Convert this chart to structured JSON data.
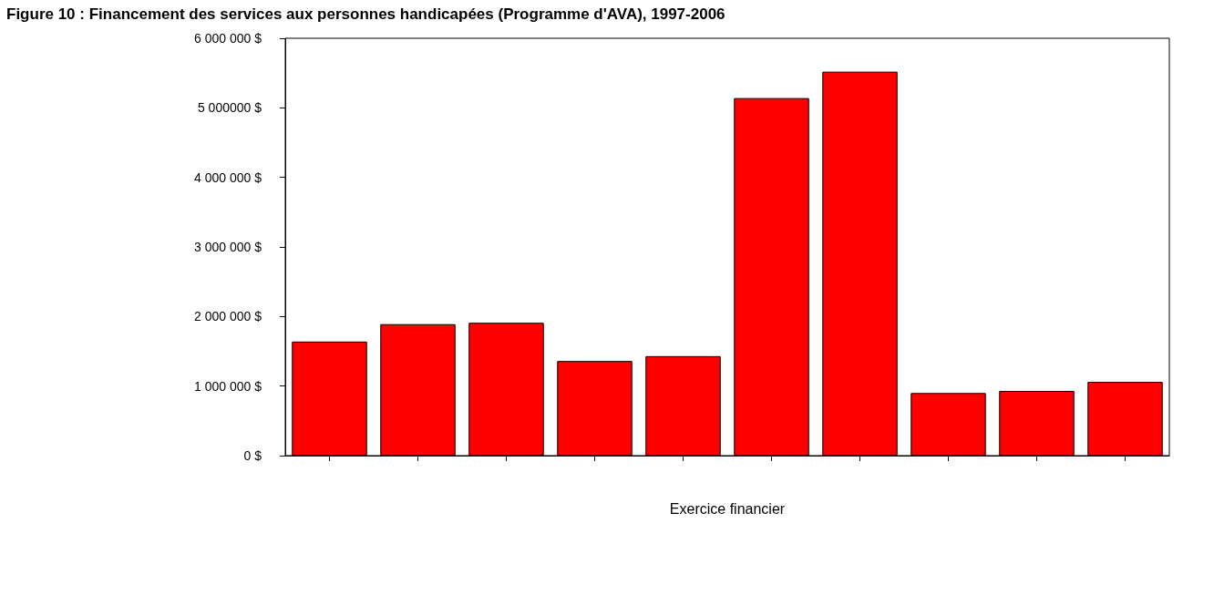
{
  "chart_data": {
    "type": "bar",
    "title": "Figure 10 : Financement des services aux personnes handicapées (Programme d'AVA), 1997-2006",
    "xlabel": "Exercice financier",
    "categories": [
      null,
      null,
      null,
      null,
      null,
      null,
      null,
      null,
      null,
      null
    ],
    "values": [
      1640000,
      1890000,
      1910000,
      1360000,
      1430000,
      5140000,
      5520000,
      900000,
      930000,
      1060000
    ],
    "color": "#ff0000",
    "ylim": [
      0,
      6000000
    ],
    "yticks": [
      {
        "value": 0,
        "label": "0 $"
      },
      {
        "value": 1000000,
        "label": "1 000 000 $"
      },
      {
        "value": 2000000,
        "label": "2 000 000 $"
      },
      {
        "value": 3000000,
        "label": "3 000 000 $"
      },
      {
        "value": 4000000,
        "label": "4 000 000 $"
      },
      {
        "value": 5000000,
        "label": "5 000000 $"
      },
      {
        "value": 6000000,
        "label": "6 000 000 $"
      }
    ],
    "grid": false,
    "tick_labels": "y"
  }
}
